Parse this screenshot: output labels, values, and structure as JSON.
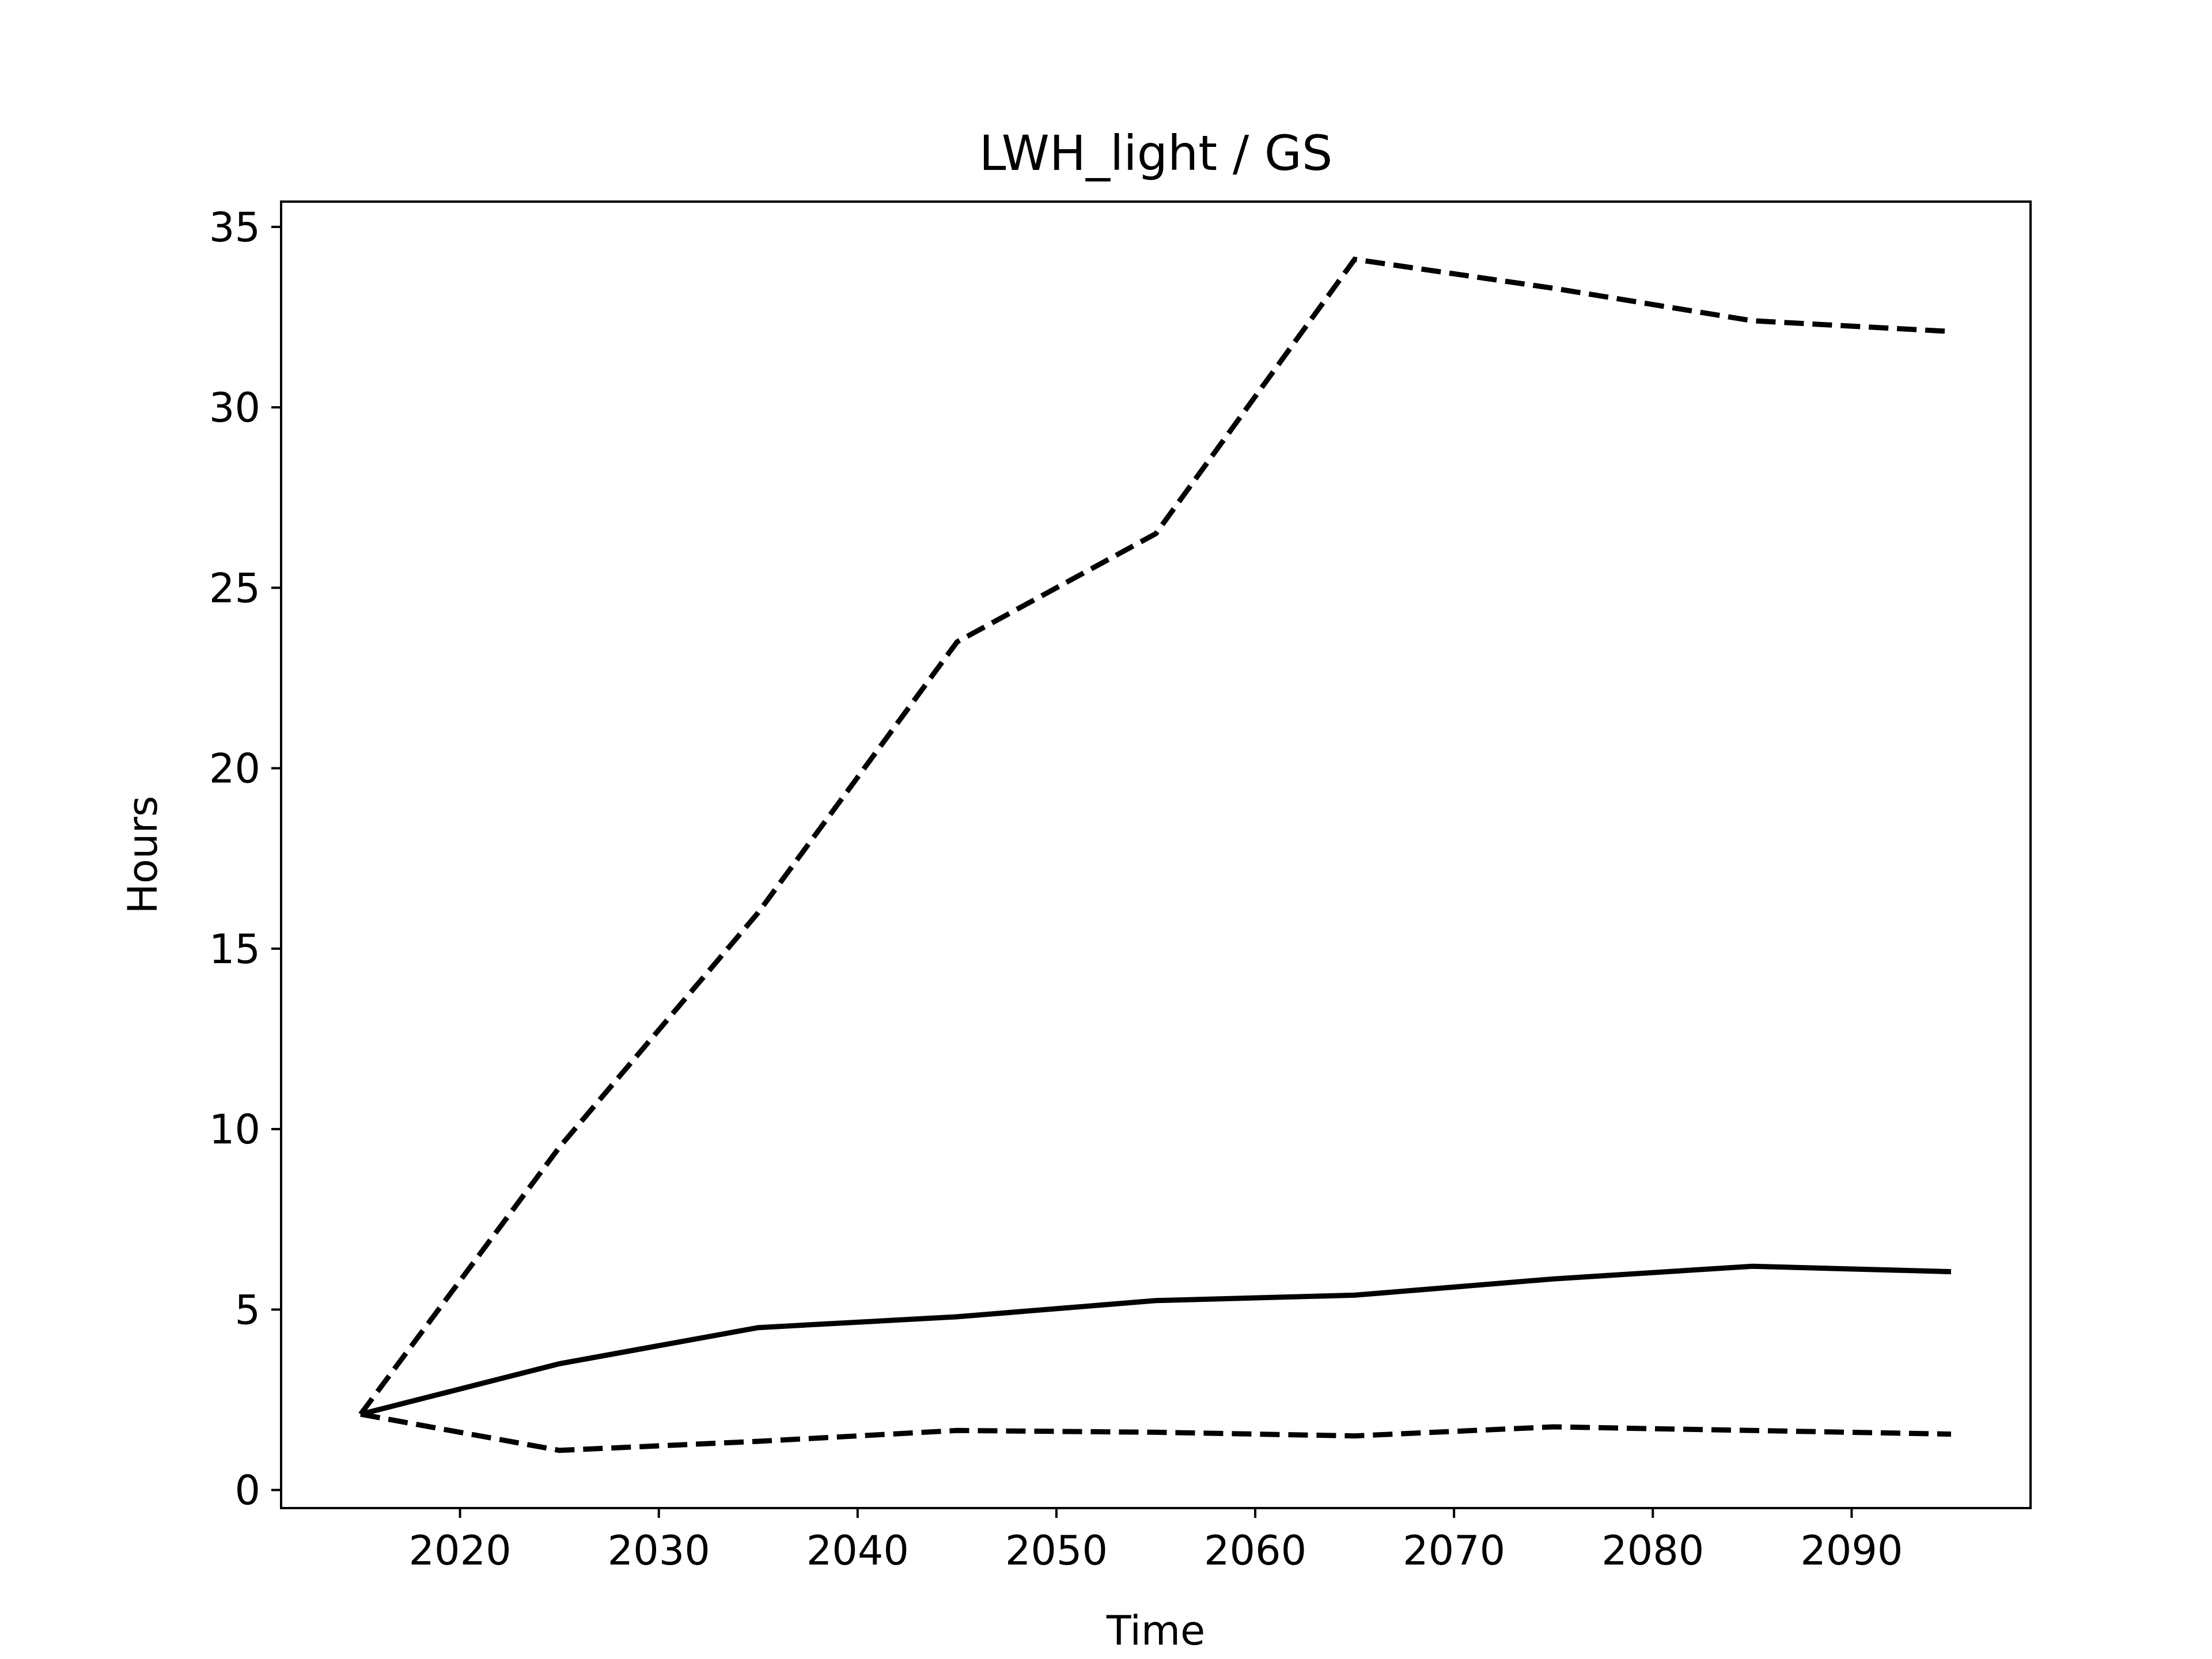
{
  "chart_data": {
    "type": "line",
    "title": "LWH_light / GS",
    "xlabel": "Time",
    "ylabel": "Hours",
    "xlim": [
      2011,
      2099
    ],
    "ylim": [
      -0.5,
      35.7
    ],
    "xticks": [
      2020,
      2030,
      2040,
      2050,
      2060,
      2070,
      2080,
      2090
    ],
    "yticks": [
      0,
      5,
      10,
      15,
      20,
      25,
      30,
      35
    ],
    "grid": false,
    "legend": "none",
    "x": [
      2015,
      2025,
      2035,
      2045,
      2055,
      2065,
      2075,
      2085,
      2095
    ],
    "series": [
      {
        "style": "dashed",
        "color": "#000000",
        "values": [
          2.1,
          9.5,
          16.0,
          23.5,
          26.5,
          34.1,
          33.3,
          32.4,
          32.1
        ]
      },
      {
        "style": "solid",
        "color": "#000000",
        "values": [
          2.1,
          3.5,
          4.5,
          4.8,
          5.25,
          5.4,
          5.85,
          6.2,
          6.05
        ]
      },
      {
        "style": "dashed",
        "color": "#000000",
        "values": [
          2.1,
          1.1,
          1.35,
          1.65,
          1.6,
          1.5,
          1.75,
          1.65,
          1.55
        ]
      }
    ]
  }
}
